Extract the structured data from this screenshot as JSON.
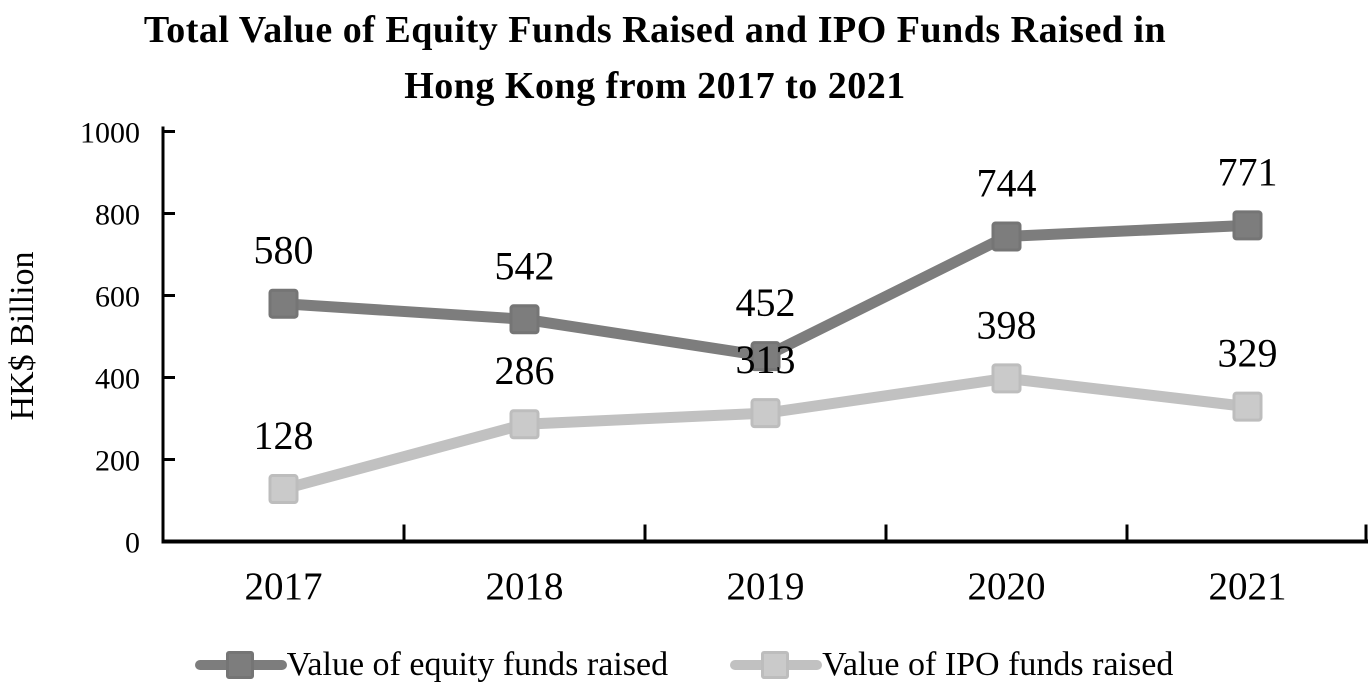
{
  "title": {
    "line1": "Total Value of Equity Funds Raised and IPO Funds Raised in",
    "line2": "Hong Kong from 2017 to 2021"
  },
  "chart_data": {
    "type": "line",
    "title": "Total Value of Equity Funds Raised and IPO Funds Raised in Hong Kong from 2017 to 2021",
    "categories": [
      "2017",
      "2018",
      "2019",
      "2020",
      "2021"
    ],
    "series": [
      {
        "name": "Value of equity funds raised",
        "values": [
          580,
          542,
          452,
          744,
          771
        ],
        "color": "#7d7d7d",
        "marker_fill": "#7d7d7d",
        "marker_edge": "#757575",
        "marker": "square"
      },
      {
        "name": "Value of IPO funds raised",
        "values": [
          128,
          286,
          313,
          398,
          329
        ],
        "color": "#c1c1c1",
        "marker_fill": "#cacaca",
        "marker_edge": "#bdbdbd",
        "marker": "square"
      }
    ],
    "xlabel": "",
    "ylabel": "HK$ Billion",
    "ylim": [
      0,
      1000
    ],
    "yticks": [
      0,
      200,
      400,
      600,
      800,
      1000
    ],
    "grid": false,
    "legend_position": "bottom",
    "data_labels": "above",
    "axis_color": "#000000",
    "text_color": "#000000"
  }
}
